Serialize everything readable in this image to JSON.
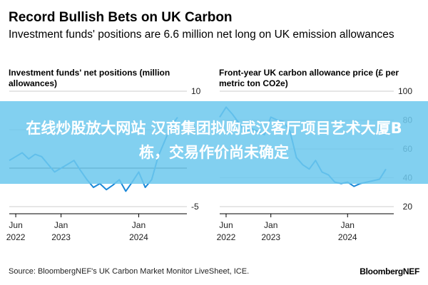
{
  "header": {
    "title": "Record Bullish Bets on UK Carbon",
    "subtitle": "Investment funds' positions are 6.6 million net long on UK emission allowances"
  },
  "overlay": {
    "text": "在线炒股放大网站 汉商集团拟购武汉客厅项目艺术大厦B栋，交易作价尚未确定",
    "color": "#6ec8ee"
  },
  "footer": {
    "source": "Source: BloombergNEF's UK Carbon Market Monitor LiveSheet, ICE.",
    "brand": "BloombergNEF"
  },
  "colors": {
    "line": "#1a88d8",
    "axis": "#000000",
    "grid": "#cccccc"
  },
  "chart_data": [
    {
      "type": "line",
      "title": "Investment funds' net positions (million allowances)",
      "x_ticks": [
        {
          "date": "2022-06",
          "label": [
            "Jun",
            "2022"
          ]
        },
        {
          "date": "2023-01",
          "label": [
            "Jan",
            "2023"
          ]
        },
        {
          "date": "2024-01",
          "label": [
            "Jan",
            "2024"
          ]
        }
      ],
      "xlim": [
        "2022-05",
        "2024-08"
      ],
      "ylim": [
        -5,
        10
      ],
      "y_ticks": [
        -5,
        0,
        5,
        10
      ],
      "y_tick_labels": [
        "-5",
        "",
        "5",
        "10"
      ],
      "baseline": 0,
      "series": [
        {
          "x": [
            "2022-05",
            "2022-06",
            "2022-07",
            "2022-08",
            "2022-09",
            "2022-10",
            "2022-11",
            "2022-12",
            "2023-01",
            "2023-02",
            "2023-03",
            "2023-04",
            "2023-05",
            "2023-06",
            "2023-07",
            "2023-08",
            "2023-09",
            "2023-10",
            "2023-11",
            "2023-12",
            "2024-01",
            "2024-02",
            "2024-03",
            "2024-04",
            "2024-05",
            "2024-06",
            "2024-07"
          ],
          "values": [
            1.0,
            1.5,
            2.0,
            1.2,
            1.8,
            1.5,
            0.5,
            -0.5,
            0.0,
            0.5,
            1.0,
            -0.3,
            -1.5,
            -2.5,
            -2.0,
            -2.8,
            -2.2,
            -1.5,
            -3.0,
            -1.8,
            -0.5,
            -2.5,
            -1.5,
            1.5,
            3.5,
            5.5,
            6.6
          ]
        }
      ]
    },
    {
      "type": "line",
      "title": "Front-year UK carbon allowance price (£ per metric ton CO2e)",
      "x_ticks": [
        {
          "date": "2022-06",
          "label": [
            "Jun",
            "2022"
          ]
        },
        {
          "date": "2023-01",
          "label": [
            "Jan",
            "2023"
          ]
        },
        {
          "date": "2024-01",
          "label": [
            "Jan",
            "2024"
          ]
        }
      ],
      "xlim": [
        "2022-05",
        "2024-08"
      ],
      "ylim": [
        20,
        100
      ],
      "y_ticks": [
        20,
        40,
        60,
        80,
        100
      ],
      "series": [
        {
          "x": [
            "2022-05",
            "2022-06",
            "2022-07",
            "2022-08",
            "2022-09",
            "2022-10",
            "2022-11",
            "2022-12",
            "2023-01",
            "2023-02",
            "2023-03",
            "2023-04",
            "2023-05",
            "2023-06",
            "2023-07",
            "2023-08",
            "2023-09",
            "2023-10",
            "2023-11",
            "2023-12",
            "2024-01",
            "2024-02",
            "2024-03",
            "2024-04",
            "2024-05",
            "2024-06",
            "2024-07"
          ],
          "values": [
            82,
            89,
            84,
            78,
            72,
            74,
            72,
            70,
            82,
            80,
            79,
            72,
            54,
            49,
            46,
            52,
            44,
            42,
            37,
            36,
            37,
            34,
            36,
            37,
            38,
            39,
            46
          ]
        }
      ]
    }
  ]
}
